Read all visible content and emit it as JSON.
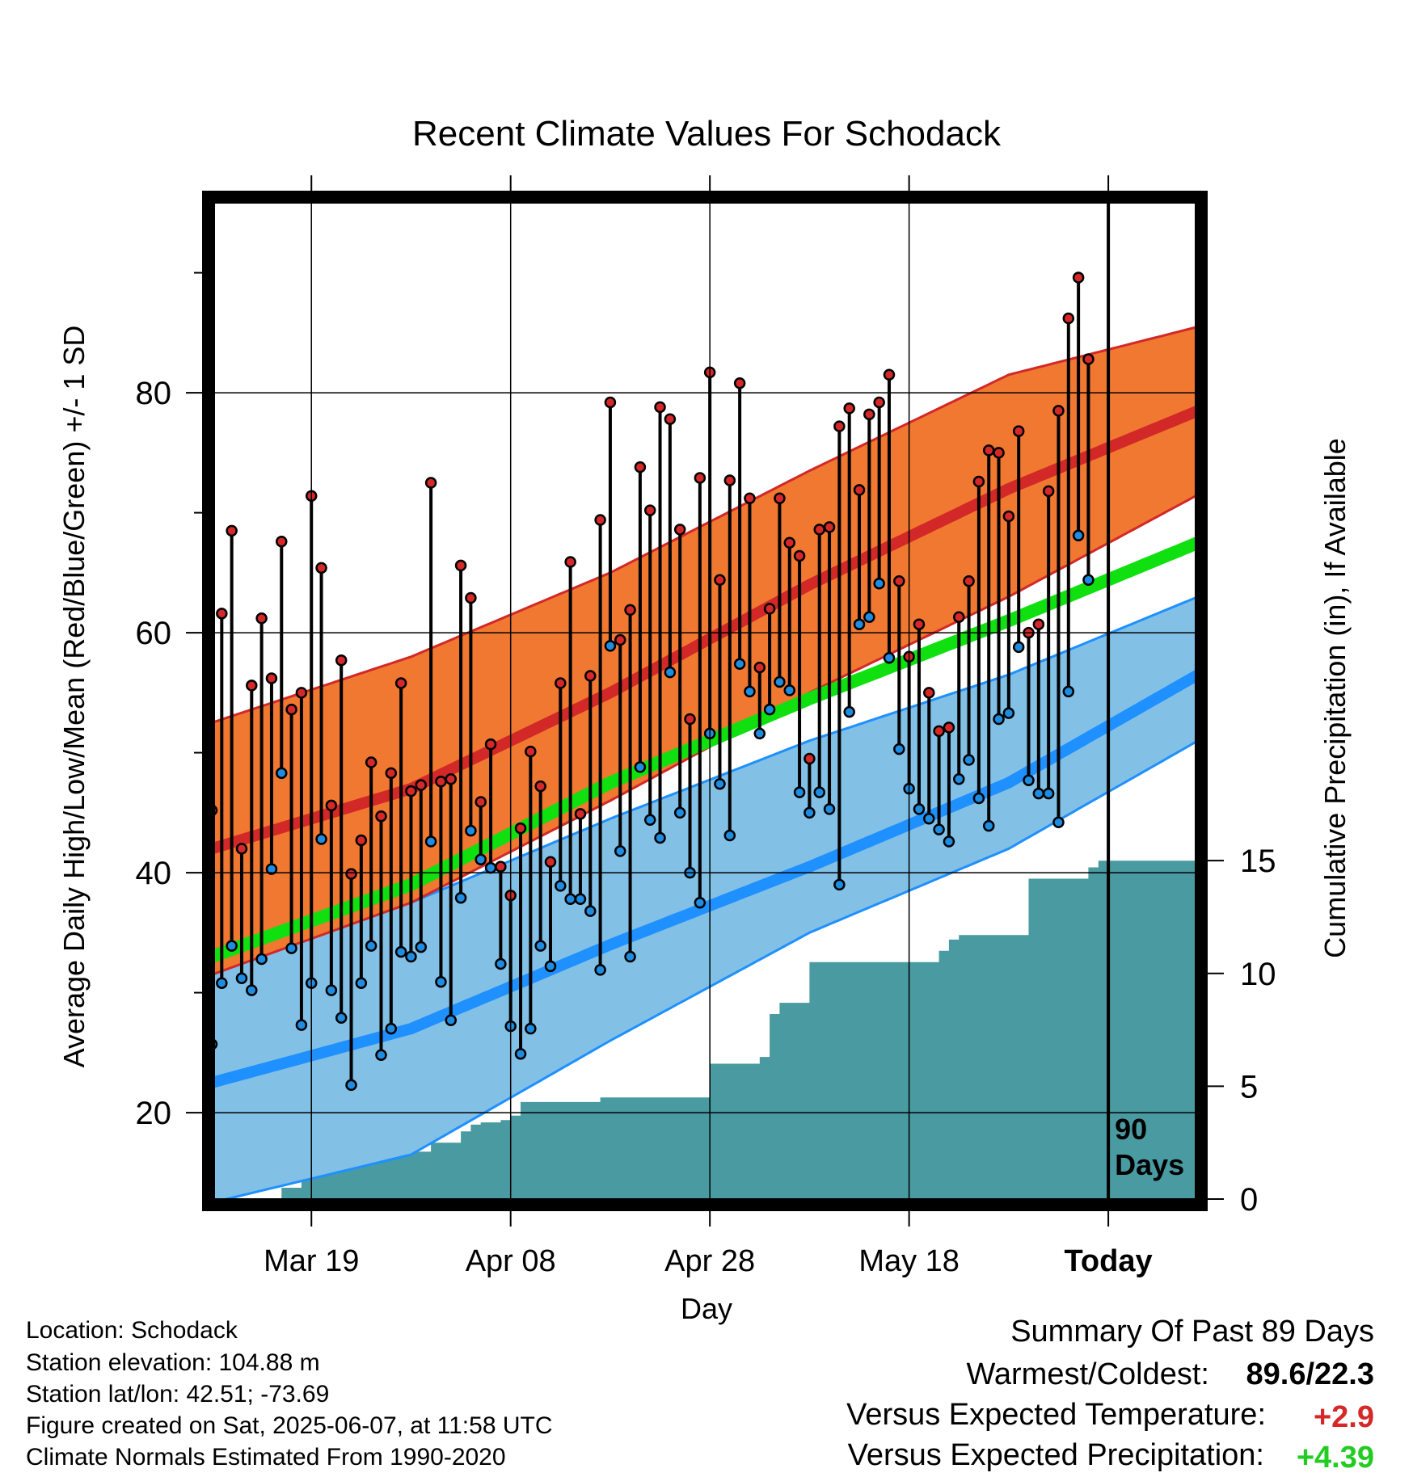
{
  "chart_data": {
    "type": "line",
    "title": "Recent Climate Values For Schodack",
    "xlabel": "Day",
    "ylabel": "Average Daily High/Low/Mean (Red/Blue/Green) +/- 1 SD",
    "y2label": "Cumulative Precipitation (in), If Available",
    "y_left_ticks": [
      "20",
      "40",
      "60",
      "80"
    ],
    "y_right_ticks": [
      "0",
      "5",
      "10",
      "15"
    ],
    "x_ticks": [
      "Mar 19",
      "Apr 08",
      "Apr 28",
      "May 18",
      "Today"
    ],
    "today_label": "90\nDays",
    "x_range_days": [
      -90,
      9
    ],
    "ylim_temp": [
      12.8,
      96.1
    ],
    "ylim_precip": [
      0,
      44.3
    ],
    "grid": true,
    "normals": {
      "high": {
        "x": [
          -90,
          -70,
          -50,
          -30,
          -10,
          9
        ],
        "mean": [
          42,
          47,
          55,
          64,
          72,
          78.5
        ],
        "upper": [
          52.5,
          58,
          65,
          73.5,
          81.5,
          85.5
        ],
        "lower": [
          31.5,
          37.5,
          46,
          55,
          63,
          71.5
        ]
      },
      "mean": {
        "x": [
          -90,
          -70,
          -50,
          -30,
          -10,
          9
        ],
        "values": [
          33,
          39,
          47.5,
          54.5,
          61,
          67.5
        ]
      },
      "low": {
        "x": [
          -90,
          -70,
          -50,
          -30,
          -10,
          9
        ],
        "mean": [
          22.5,
          27,
          34,
          40.5,
          47.5,
          56.5
        ],
        "upper": [
          33.5,
          37.5,
          44.5,
          51,
          56.5,
          63
        ],
        "lower": [
          12.5,
          16.5,
          26,
          35,
          42,
          51
        ]
      }
    },
    "daily_high": [
      45.2,
      61.6,
      68.5,
      42,
      55.6,
      61.2,
      56.2,
      67.6,
      53.6,
      55,
      71.4,
      65.4,
      45.6,
      57.7,
      39.9,
      42.7,
      49.2,
      44.7,
      48.3,
      55.8,
      46.8,
      47.3,
      72.5,
      47.6,
      47.8,
      65.6,
      62.9,
      45.9,
      50.7,
      40.5,
      38.1,
      43.7,
      50.1,
      47.2,
      40.9,
      55.8,
      65.9,
      44.9,
      56.4,
      69.4,
      79.2,
      59.4,
      61.9,
      73.8,
      70.2,
      78.8,
      77.8,
      68.6,
      52.8,
      72.9,
      81.7,
      64.4,
      72.7,
      80.8,
      71.2,
      57.1,
      62,
      71.2,
      67.5,
      66.4,
      49.5,
      68.6,
      68.8,
      77.2,
      78.7,
      71.9,
      78.2,
      79.2,
      81.5,
      64.3,
      58,
      60.7,
      55,
      51.8,
      52.1,
      61.3,
      64.3,
      72.6,
      75.2,
      75,
      69.7,
      76.8,
      60,
      60.7,
      71.8,
      78.5,
      86.2,
      89.6,
      82.8
    ],
    "daily_low": [
      25.7,
      30.8,
      33.9,
      31.2,
      30.2,
      32.8,
      40.3,
      48.3,
      33.7,
      27.3,
      30.8,
      42.8,
      30.2,
      27.9,
      22.3,
      30.8,
      33.9,
      24.8,
      27,
      33.4,
      33,
      33.8,
      42.6,
      30.9,
      27.7,
      37.9,
      43.5,
      41.1,
      40.4,
      32.4,
      27.2,
      24.9,
      27,
      33.9,
      32.2,
      38.9,
      37.8,
      37.8,
      36.8,
      31.9,
      58.9,
      41.8,
      33,
      48.8,
      44.4,
      42.9,
      56.7,
      45,
      40,
      37.5,
      51.6,
      47.4,
      43.1,
      57.4,
      55.1,
      51.6,
      53.6,
      55.9,
      55.2,
      46.7,
      45,
      46.7,
      45.3,
      39,
      53.4,
      60.7,
      61.3,
      64.1,
      57.9,
      50.3,
      47,
      45.3,
      44.5,
      43.6,
      42.6,
      47.8,
      49.4,
      46.2,
      43.9,
      52.8,
      53.3,
      58.8,
      47.7,
      46.6,
      46.6,
      44.2,
      55.1,
      68.1,
      64.4
    ],
    "cumulative_precip": [
      0,
      0,
      0,
      0,
      0,
      0,
      0,
      0.5,
      0.5,
      0.9,
      1.6,
      1.7,
      1.7,
      1.8,
      1.8,
      1.8,
      1.8,
      1.8,
      2,
      2,
      2.1,
      2.1,
      2.5,
      2.5,
      2.5,
      3,
      3.3,
      3.4,
      3.4,
      3.5,
      3.7,
      4.3,
      4.3,
      4.3,
      4.3,
      4.3,
      4.3,
      4.3,
      4.3,
      4.5,
      4.5,
      4.5,
      4.5,
      4.5,
      4.5,
      4.5,
      4.5,
      4.5,
      4.5,
      4.5,
      6,
      6,
      6,
      6,
      6,
      6.3,
      8.2,
      8.7,
      8.7,
      8.7,
      10.5,
      10.5,
      10.5,
      10.5,
      10.5,
      10.5,
      10.5,
      10.5,
      10.5,
      10.5,
      10.5,
      10.5,
      10.5,
      11,
      11.5,
      11.7,
      11.7,
      11.7,
      11.7,
      11.7,
      11.7,
      11.7,
      14.2,
      14.2,
      14.2,
      14.2,
      14.2,
      14.2,
      14.7,
      15,
      15,
      15,
      15,
      15,
      15,
      15,
      15,
      15,
      15
    ]
  },
  "info": {
    "location": "Location: Schodack",
    "elevation": "Station elevation: 104.88 m",
    "latlon": "Station lat/lon: 42.51; -73.69",
    "created": "Figure created on Sat, 2025-06-07, at 11:58 UTC",
    "normals": "Climate Normals Estimated From 1990-2020"
  },
  "summary": {
    "title": "Summary Of Past 89 Days",
    "warmest_label": "Warmest/Coldest:",
    "warmest_value": "89.6/22.3",
    "temp_label": "Versus Expected Temperature:",
    "temp_value": "+2.9",
    "precip_label": "Versus Expected Precipitation:",
    "precip_value": "+4.39"
  },
  "colors": {
    "high_band": "#f07830",
    "high_line": "#d22828",
    "mean_line": "#10e010",
    "low_band": "#82c0e6",
    "low_line": "#1e90ff",
    "precip": "#4a9aa2",
    "high_point": "#d62828",
    "low_point": "#1e8ce0",
    "positive_temp": "#d62828",
    "positive_precip": "#22cc22"
  }
}
